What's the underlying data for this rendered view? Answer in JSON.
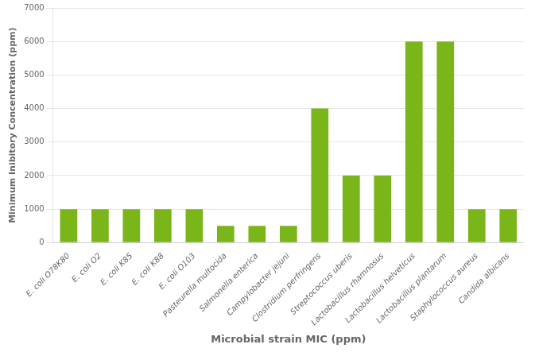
{
  "chart_data": {
    "type": "bar",
    "categories": [
      "E. coli O78K80",
      "E. coli O2",
      "E. coli K85",
      "E. coli K88",
      "E. coli O103",
      "Pasteurella multocida",
      "Salmonella enterica",
      "Campylobacter jejuni",
      "Clostridium perfringens",
      "Streptococcus uberis",
      "Lactobacillus rhamnosus",
      "Lactobacillus helveticus",
      "Lactobacillus plantarum",
      "Staphylococcus aureus",
      "Candida albicans"
    ],
    "values": [
      1000,
      1000,
      1000,
      1000,
      1000,
      500,
      500,
      500,
      4000,
      2000,
      2000,
      6000,
      6000,
      1000,
      1000
    ],
    "color": "#7ab519",
    "xlabel": "Microbial strain MIC (ppm)",
    "ylabel": "Minimum Inibitory Concentration (ppm)",
    "ylim": [
      0,
      7000
    ],
    "yticks": [
      0,
      1000,
      2000,
      3000,
      4000,
      5000,
      6000,
      7000
    ],
    "grid": true
  }
}
